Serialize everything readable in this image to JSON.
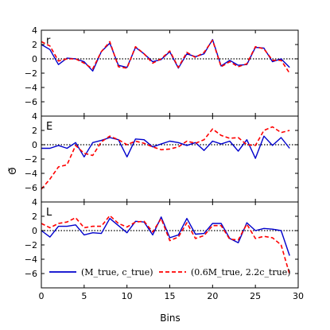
{
  "chart_data": {
    "type": "line",
    "xlabel": "Bins",
    "ylabel": "Θ̃",
    "xlim": [
      0,
      30
    ],
    "ylim": [
      -8,
      4
    ],
    "xticks": [
      0,
      5,
      10,
      15,
      20,
      25,
      30
    ],
    "yticks": [
      4,
      2,
      0,
      -2,
      -4,
      -6
    ],
    "grid": false,
    "reference_line": {
      "y": 0,
      "style": "dotted",
      "color": "#000000"
    },
    "legend": {
      "placement": "bottom",
      "entries": [
        {
          "label": "(M_true, c_true)",
          "color": "#0000cc",
          "style": "solid"
        },
        {
          "label": "(0.6M_true, 2.2c_true)",
          "color": "#ff0000",
          "style": "dashed"
        }
      ]
    },
    "panels": [
      {
        "label": "r",
        "x": [
          0,
          1,
          2,
          3,
          4,
          5,
          6,
          7,
          8,
          9,
          10,
          11,
          12,
          13,
          14,
          15,
          16,
          17,
          18,
          19,
          20,
          21,
          22,
          23,
          24,
          25,
          26,
          27,
          28,
          29
        ],
        "series": [
          {
            "name": "(M_true, c_true)",
            "color": "#0000cc",
            "style": "solid",
            "values": [
              2.0,
              1.3,
              -0.8,
              0.1,
              0.0,
              -0.4,
              -1.7,
              1.0,
              2.2,
              -0.9,
              -1.2,
              1.6,
              0.7,
              -0.4,
              -0.1,
              1.0,
              -1.3,
              0.7,
              0.3,
              0.7,
              2.7,
              -1.0,
              -0.2,
              -0.9,
              -0.8,
              1.6,
              1.5,
              -0.4,
              0.0,
              -1.2
            ]
          },
          {
            "name": "(0.6M_true, 2.2c_true)",
            "color": "#ff0000",
            "style": "dashed",
            "values": [
              2.4,
              1.8,
              -0.3,
              0.0,
              0.0,
              -0.6,
              -1.4,
              1.0,
              2.4,
              -1.1,
              -1.3,
              1.7,
              0.7,
              -0.6,
              0.0,
              1.1,
              -1.2,
              0.9,
              0.2,
              0.9,
              2.6,
              -1.1,
              -0.4,
              -1.1,
              -0.7,
              1.7,
              1.4,
              -0.2,
              -0.2,
              -2.0
            ]
          }
        ]
      },
      {
        "label": "E",
        "x": [
          0,
          1,
          2,
          3,
          4,
          5,
          6,
          7,
          8,
          9,
          10,
          11,
          12,
          13,
          14,
          15,
          16,
          17,
          18,
          19,
          20,
          21,
          22,
          23,
          24,
          25,
          26,
          27,
          28,
          29
        ],
        "series": [
          {
            "name": "(M_true, c_true)",
            "color": "#0000cc",
            "style": "solid",
            "values": [
              -0.5,
              -0.5,
              -0.1,
              -0.5,
              0.3,
              -1.7,
              0.3,
              0.6,
              1.0,
              0.7,
              -1.7,
              0.8,
              0.7,
              -0.3,
              0.1,
              0.5,
              0.3,
              -0.1,
              0.3,
              -0.8,
              0.5,
              0.1,
              0.5,
              -0.9,
              0.7,
              -1.9,
              1.2,
              -0.1,
              1.0,
              -0.5
            ]
          },
          {
            "name": "(0.6M_true, 2.2c_true)",
            "color": "#ff0000",
            "style": "dashed",
            "values": [
              -6.2,
              -4.8,
              -3.1,
              -2.8,
              -0.1,
              -1.2,
              -1.5,
              0.4,
              1.2,
              0.7,
              0.0,
              0.5,
              0.2,
              -0.3,
              -0.7,
              -0.6,
              -0.3,
              0.5,
              0.2,
              0.7,
              2.2,
              1.3,
              0.9,
              1.0,
              0.0,
              -0.1,
              2.0,
              2.5,
              1.7,
              2.0
            ]
          }
        ]
      },
      {
        "label": "L",
        "x": [
          0,
          1,
          2,
          3,
          4,
          5,
          6,
          7,
          8,
          9,
          10,
          11,
          12,
          13,
          14,
          15,
          16,
          17,
          18,
          19,
          20,
          21,
          22,
          23,
          24,
          25,
          26,
          27,
          28,
          29
        ],
        "series": [
          {
            "name": "(M_true, c_true)",
            "color": "#0000cc",
            "style": "solid",
            "values": [
              0.0,
              -0.9,
              0.6,
              0.6,
              0.8,
              -0.6,
              -0.3,
              -0.4,
              1.7,
              0.7,
              -0.3,
              1.3,
              1.2,
              -0.6,
              1.9,
              -1.0,
              -0.6,
              1.7,
              -0.5,
              -0.4,
              1.0,
              1.0,
              -1.1,
              -1.7,
              1.1,
              0.0,
              0.3,
              0.2,
              0.0,
              -3.5
            ]
          },
          {
            "name": "(0.6M_true, 2.2c_true)",
            "color": "#ff0000",
            "style": "dashed",
            "values": [
              1.0,
              0.4,
              1.0,
              1.2,
              1.8,
              0.4,
              0.6,
              0.6,
              2.1,
              1.0,
              0.5,
              1.2,
              1.3,
              -0.2,
              1.7,
              -1.4,
              -0.9,
              1.1,
              -1.1,
              -0.7,
              0.7,
              0.7,
              -1.2,
              -1.3,
              0.9,
              -1.1,
              -0.8,
              -1.0,
              -2.0,
              -6.1
            ]
          }
        ]
      }
    ]
  }
}
